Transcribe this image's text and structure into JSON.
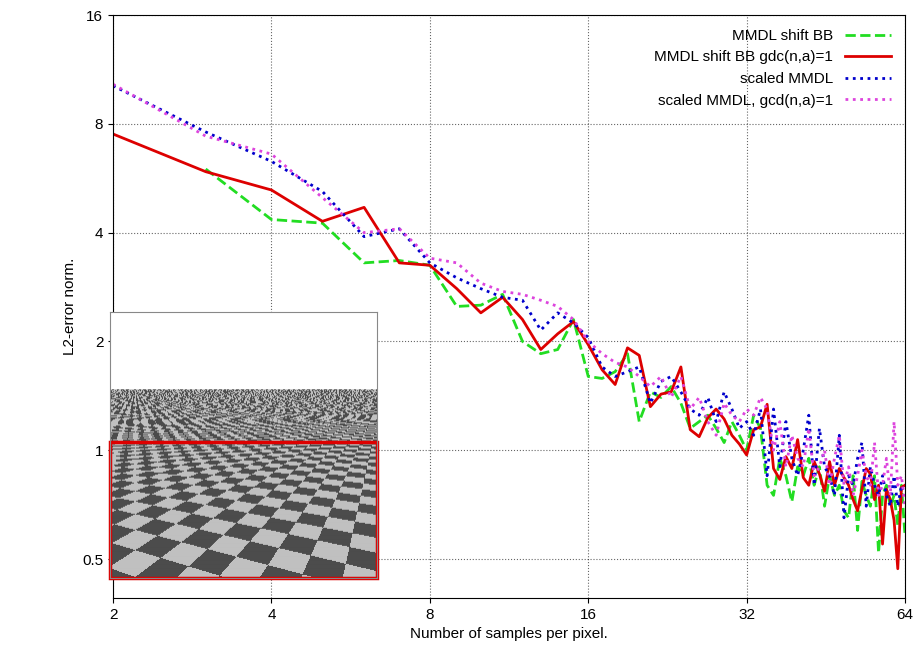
{
  "chart_data": {
    "type": "line",
    "x_label": "Number of samples per pixel.",
    "y_label": "L2-error norm.",
    "log": true,
    "grid": true,
    "legend": "upper right",
    "xlim": [
      2,
      64
    ],
    "xticks": [
      2,
      4,
      8,
      16,
      32,
      64
    ],
    "ylim": [
      0.39,
      16
    ],
    "yticks": [
      0.5,
      1,
      2,
      4,
      8,
      16
    ],
    "x": [
      2,
      3,
      4,
      5,
      6,
      7,
      8,
      9,
      10,
      11,
      12,
      13,
      14,
      15,
      16,
      17,
      18,
      19,
      20,
      21,
      22,
      23,
      24,
      25,
      26,
      27,
      28,
      29,
      30,
      31,
      32,
      33,
      34,
      35,
      36,
      37,
      38,
      39,
      40,
      41,
      42,
      43,
      44,
      45,
      46,
      47,
      48,
      49,
      50,
      51,
      52,
      53,
      54,
      55,
      56,
      57,
      58,
      59,
      60,
      61,
      62,
      63,
      64
    ],
    "series": [
      {
        "name": "MMDL shift BB",
        "color": "#22dd22",
        "line_style": "dashed",
        "values": [
          null,
          6.0,
          4.35,
          4.25,
          3.3,
          3.35,
          3.25,
          2.5,
          2.52,
          2.7,
          2.0,
          1.85,
          1.9,
          2.3,
          1.6,
          1.58,
          1.65,
          1.85,
          1.2,
          1.45,
          1.4,
          1.5,
          1.35,
          1.15,
          1.2,
          1.25,
          1.15,
          1.05,
          1.2,
          1.1,
          1.0,
          1.25,
          1.15,
          0.8,
          0.75,
          0.95,
          0.85,
          0.72,
          0.9,
          0.85,
          0.95,
          0.8,
          0.9,
          0.7,
          0.85,
          0.75,
          0.8,
          0.68,
          0.65,
          0.85,
          0.6,
          0.82,
          0.75,
          0.7,
          0.85,
          0.52,
          0.75,
          0.8,
          0.7,
          0.75,
          0.62,
          0.8,
          0.58
        ]
      },
      {
        "name": "MMDL shift BB gdc(n,a)=1",
        "color": "#dd0000",
        "line_style": "solid",
        "values": [
          7.5,
          5.9,
          5.25,
          4.3,
          4.7,
          3.3,
          3.25,
          2.8,
          2.4,
          2.65,
          2.3,
          1.9,
          2.1,
          2.27,
          1.96,
          1.67,
          1.52,
          1.92,
          1.83,
          1.32,
          1.43,
          1.45,
          1.7,
          1.14,
          1.09,
          1.23,
          1.3,
          1.22,
          1.1,
          1.04,
          0.97,
          1.14,
          1.16,
          1.34,
          0.89,
          0.83,
          0.96,
          0.89,
          1.07,
          0.84,
          0.8,
          0.93,
          0.86,
          0.77,
          0.93,
          0.8,
          0.89,
          0.84,
          0.8,
          0.73,
          0.68,
          0.78,
          0.89,
          0.86,
          0.73,
          0.8,
          0.55,
          0.78,
          0.73,
          0.64,
          0.47,
          0.79,
          0.8
        ]
      },
      {
        "name": "scaled MMDL",
        "color": "#0000cc",
        "line_style": "dotted",
        "values": [
          10.2,
          7.6,
          6.3,
          5.2,
          3.9,
          4.1,
          3.3,
          3.0,
          2.8,
          2.65,
          2.6,
          2.15,
          2.4,
          2.25,
          2.05,
          1.7,
          1.6,
          1.65,
          1.7,
          1.35,
          1.55,
          1.6,
          1.45,
          1.3,
          1.25,
          1.4,
          1.2,
          1.45,
          1.3,
          1.15,
          1.2,
          1.1,
          1.3,
          0.85,
          1.3,
          0.9,
          1.2,
          0.95,
          0.85,
          1.0,
          1.25,
          0.8,
          1.15,
          0.9,
          0.85,
          0.75,
          1.1,
          0.65,
          0.85,
          0.8,
          0.95,
          1.05,
          0.7,
          0.9,
          0.8,
          0.75,
          0.85,
          0.75,
          0.7,
          0.85,
          0.7,
          0.8,
          0.75
        ]
      },
      {
        "name": "scaled MMDL, gcd(n,a)=1",
        "color": "#dd44dd",
        "line_style": "dotted",
        "values": [
          10.3,
          7.4,
          6.6,
          5.0,
          4.0,
          4.1,
          3.4,
          3.3,
          2.9,
          2.75,
          2.7,
          2.6,
          2.5,
          2.3,
          2.0,
          1.85,
          1.75,
          1.7,
          1.6,
          1.5,
          1.6,
          1.4,
          1.6,
          1.3,
          1.4,
          1.2,
          1.1,
          1.35,
          1.25,
          1.2,
          1.3,
          1.25,
          1.4,
          1.3,
          1.0,
          1.2,
          0.9,
          1.1,
          0.95,
          0.9,
          1.15,
          0.85,
          0.9,
          1.0,
          0.8,
          0.95,
          1.1,
          0.8,
          0.9,
          0.75,
          0.85,
          1.0,
          0.85,
          0.8,
          1.05,
          0.75,
          0.8,
          0.95,
          0.75,
          1.2,
          0.8,
          0.85,
          0.7
        ]
      }
    ]
  }
}
